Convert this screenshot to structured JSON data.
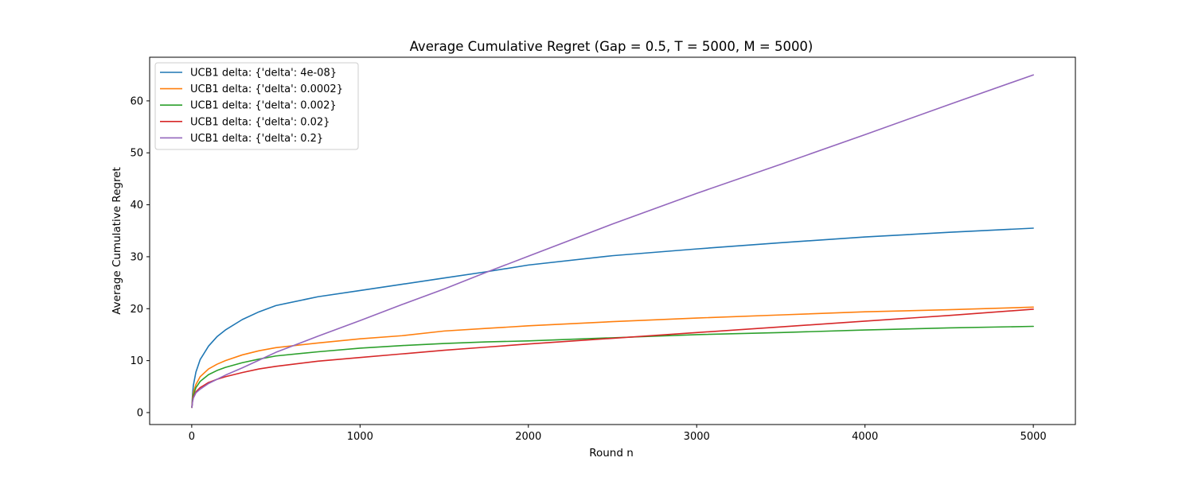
{
  "chart_data": {
    "type": "line",
    "title": "Average Cumulative Regret (Gap = 0.5, T = 5000, M = 5000)",
    "xlabel": "Round n",
    "ylabel": "Average Cumulative Regret",
    "xlim": [
      -250,
      5250
    ],
    "ylim": [
      -2.3,
      68.4
    ],
    "xticks": [
      0,
      1000,
      2000,
      3000,
      4000,
      5000
    ],
    "yticks": [
      0,
      10,
      20,
      30,
      40,
      50,
      60
    ],
    "grid": false,
    "legend_position": "top-left",
    "x": [
      1,
      5,
      10,
      25,
      50,
      100,
      150,
      200,
      300,
      400,
      500,
      750,
      1000,
      1250,
      1500,
      1750,
      2000,
      2500,
      3000,
      3500,
      4000,
      4500,
      5000
    ],
    "series": [
      {
        "name": "UCB1 delta: {'delta': 4e-08}",
        "color": "#1f77b4",
        "values": [
          1.0,
          3.6,
          5.3,
          7.8,
          10.2,
          12.8,
          14.6,
          15.9,
          17.9,
          19.4,
          20.6,
          22.3,
          23.5,
          24.7,
          25.9,
          27.1,
          28.4,
          30.2,
          31.5,
          32.7,
          33.8,
          34.7,
          35.5
        ]
      },
      {
        "name": "UCB1 delta: {'delta': 0.0002}",
        "color": "#ff7f0e",
        "values": [
          1.0,
          2.8,
          3.9,
          5.4,
          6.9,
          8.4,
          9.3,
          10.0,
          11.1,
          11.9,
          12.5,
          13.4,
          14.2,
          14.8,
          15.7,
          16.2,
          16.7,
          17.5,
          18.2,
          18.8,
          19.4,
          19.8,
          20.3
        ]
      },
      {
        "name": "UCB1 delta: {'delta': 0.002}",
        "color": "#2ca02c",
        "values": [
          1.0,
          2.5,
          3.4,
          4.8,
          6.0,
          7.3,
          8.1,
          8.7,
          9.6,
          10.3,
          10.9,
          11.7,
          12.4,
          12.9,
          13.3,
          13.6,
          13.8,
          14.4,
          15.0,
          15.4,
          15.9,
          16.3,
          16.6
        ]
      },
      {
        "name": "UCB1 delta: {'delta': 0.02}",
        "color": "#d62728",
        "values": [
          1.0,
          2.2,
          3.0,
          4.0,
          4.8,
          5.8,
          6.4,
          6.9,
          7.7,
          8.4,
          8.9,
          9.9,
          10.6,
          11.3,
          12.0,
          12.6,
          13.2,
          14.3,
          15.4,
          16.5,
          17.6,
          18.7,
          19.9
        ]
      },
      {
        "name": "UCB1 delta: {'delta': 0.2}",
        "color": "#9467bd",
        "values": [
          1.0,
          2.1,
          2.8,
          3.8,
          4.5,
          5.6,
          6.4,
          7.2,
          8.6,
          10.1,
          11.6,
          14.7,
          17.7,
          20.8,
          23.8,
          27.0,
          30.1,
          36.3,
          42.2,
          47.8,
          53.5,
          59.3,
          65.0
        ]
      }
    ]
  }
}
